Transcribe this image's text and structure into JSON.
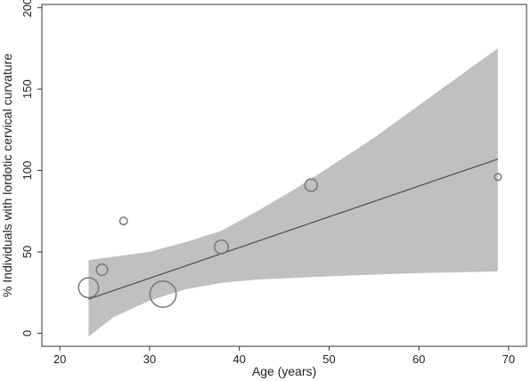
{
  "chart_data": {
    "type": "scatter",
    "title": "",
    "xlabel": "Age (years)",
    "ylabel": "% Individuals with lordotic cervical curvature",
    "xlim": [
      18,
      72
    ],
    "ylim": [
      -8,
      202
    ],
    "xticks": [
      20,
      30,
      40,
      50,
      60,
      70
    ],
    "yticks": [
      0,
      50,
      100,
      150,
      200
    ],
    "grid": false,
    "legend": "none",
    "points": [
      {
        "x": 23.2,
        "y": 28,
        "weight": 3.2
      },
      {
        "x": 24.7,
        "y": 39,
        "weight": 1.8
      },
      {
        "x": 27.1,
        "y": 69,
        "weight": 1.2
      },
      {
        "x": 31.5,
        "y": 24,
        "weight": 4.2
      },
      {
        "x": 38.0,
        "y": 53,
        "weight": 2.2
      },
      {
        "x": 48.0,
        "y": 91,
        "weight": 2.0
      },
      {
        "x": 68.8,
        "y": 96,
        "weight": 1.1
      }
    ],
    "fit_line": {
      "x": [
        23.2,
        68.8
      ],
      "y": [
        21,
        107
      ]
    },
    "confidence_band": {
      "x": [
        23.2,
        26,
        30,
        34,
        38,
        42,
        46,
        50,
        55,
        60,
        65,
        68.8
      ],
      "upper": [
        45,
        47,
        50,
        56,
        63,
        75,
        88,
        102,
        120,
        140,
        160,
        175
      ],
      "lower": [
        -2,
        10,
        20,
        27,
        31,
        33,
        34,
        35,
        36,
        37,
        37.5,
        38
      ]
    },
    "colors": {
      "band": "#c0c0c0",
      "line": "#555555",
      "marker": "#777777",
      "axis": "#333333"
    }
  }
}
